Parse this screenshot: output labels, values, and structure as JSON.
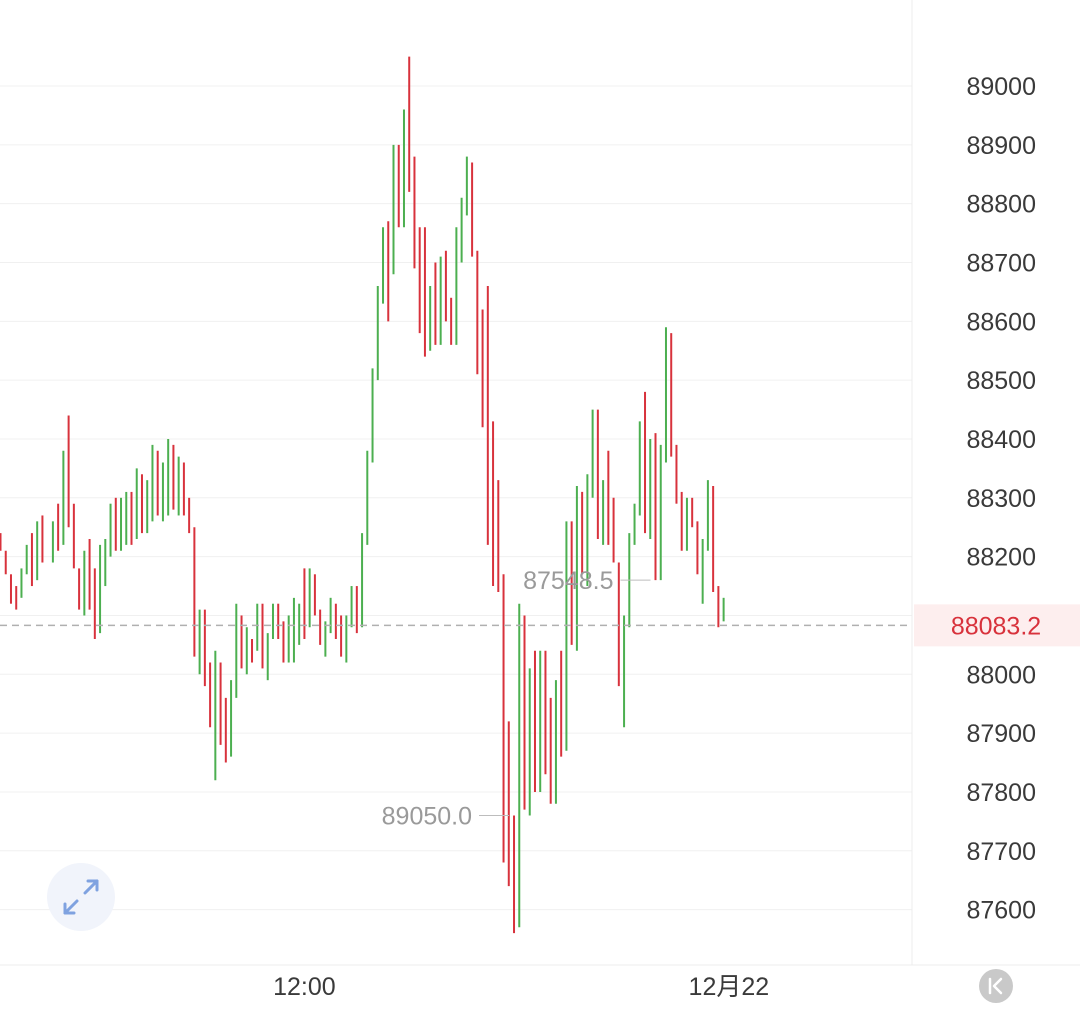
{
  "chart_data": {
    "type": "ohlc",
    "title": "",
    "xlabel": "",
    "ylabel": "",
    "ylim": [
      87490,
      89150
    ],
    "y_ticks": [
      87600,
      87700,
      87800,
      87900,
      88000,
      88100,
      88200,
      88300,
      88400,
      88500,
      88600,
      88700,
      88800,
      88900,
      89000
    ],
    "y_tick_labels": [
      "87600",
      "87700",
      "87800",
      "87900",
      "88000",
      "",
      "88200",
      "88300",
      "88400",
      "88500",
      "88600",
      "88700",
      "88800",
      "88900",
      "89000"
    ],
    "x_tick_labels": [
      {
        "label": "12:00",
        "index": 58
      },
      {
        "label": "12月22",
        "index": 139
      }
    ],
    "current_price": 88083.2,
    "current_price_label": "88083.2",
    "max_label": "89050.0",
    "min_label": "87548.5",
    "max_index": 98,
    "min_index": 125,
    "grid": true,
    "colors": {
      "up": "#4caf50",
      "down": "#d8323c",
      "price_line": "#b0b0b0",
      "price_text": "#d8323c"
    },
    "candles": [
      [
        88240,
        88240,
        88210,
        88210
      ],
      [
        88210,
        88210,
        88170,
        88170
      ],
      [
        88170,
        88170,
        88120,
        88150
      ],
      [
        88150,
        88150,
        88110,
        88130
      ],
      [
        88130,
        88180,
        88130,
        88180
      ],
      [
        88180,
        88220,
        88170,
        88210
      ],
      [
        88210,
        88240,
        88150,
        88160
      ],
      [
        88160,
        88260,
        88160,
        88250
      ],
      [
        88250,
        88270,
        88190,
        88190
      ],
      [
        88190,
        88200,
        88200,
        88200
      ],
      [
        88200,
        88260,
        88190,
        88250
      ],
      [
        88250,
        88290,
        88210,
        88220
      ],
      [
        88220,
        88380,
        88220,
        88380
      ],
      [
        88380,
        88440,
        88250,
        88250
      ],
      [
        88250,
        88290,
        88180,
        88180
      ],
      [
        88180,
        88180,
        88110,
        88130
      ],
      [
        88130,
        88210,
        88100,
        88200
      ],
      [
        88200,
        88230,
        88110,
        88130
      ],
      [
        88130,
        88180,
        88060,
        88080
      ],
      [
        88080,
        88220,
        88070,
        88210
      ],
      [
        88210,
        88230,
        88150,
        88230
      ],
      [
        88230,
        88290,
        88200,
        88280
      ],
      [
        88280,
        88300,
        88210,
        88210
      ],
      [
        88210,
        88300,
        88210,
        88290
      ],
      [
        88290,
        88310,
        88220,
        88300
      ],
      [
        88300,
        88310,
        88220,
        88230
      ],
      [
        88230,
        88350,
        88230,
        88340
      ],
      [
        88340,
        88340,
        88240,
        88250
      ],
      [
        88250,
        88330,
        88240,
        88320
      ],
      [
        88320,
        88390,
        88260,
        88380
      ],
      [
        88380,
        88380,
        88270,
        88280
      ],
      [
        88280,
        88360,
        88260,
        88340
      ],
      [
        88340,
        88400,
        88270,
        88390
      ],
      [
        88390,
        88390,
        88280,
        88290
      ],
      [
        88290,
        88370,
        88270,
        88350
      ],
      [
        88350,
        88360,
        88270,
        88280
      ],
      [
        88280,
        88300,
        88240,
        88240
      ],
      [
        88240,
        88250,
        88030,
        88030
      ],
      [
        88030,
        88110,
        88000,
        88100
      ],
      [
        88100,
        88110,
        87980,
        87990
      ],
      [
        87990,
        88020,
        87910,
        87920
      ],
      [
        87920,
        88040,
        87820,
        88020
      ],
      [
        88020,
        88020,
        87880,
        87900
      ],
      [
        87900,
        87960,
        87850,
        87860
      ],
      [
        87860,
        87990,
        87860,
        87960
      ],
      [
        87960,
        88120,
        87960,
        88100
      ],
      [
        88100,
        88100,
        88010,
        88020
      ],
      [
        88020,
        88080,
        88000,
        88050
      ],
      [
        88050,
        88060,
        88020,
        88040
      ],
      [
        88040,
        88120,
        88040,
        88080
      ],
      [
        88080,
        88120,
        88010,
        88020
      ],
      [
        88020,
        88070,
        87990,
        88070
      ],
      [
        88070,
        88120,
        88060,
        88110
      ],
      [
        88110,
        88120,
        88060,
        88070
      ],
      [
        88070,
        88090,
        88020,
        88040
      ],
      [
        88040,
        88100,
        88020,
        88050
      ],
      [
        88050,
        88130,
        88020,
        88060
      ],
      [
        88060,
        88120,
        88050,
        88110
      ],
      [
        88110,
        88180,
        88060,
        88090
      ],
      [
        88090,
        88180,
        88080,
        88170
      ],
      [
        88170,
        88170,
        88100,
        88100
      ],
      [
        88100,
        88110,
        88050,
        88070
      ],
      [
        88070,
        88090,
        88030,
        88080
      ],
      [
        88080,
        88130,
        88070,
        88110
      ],
      [
        88110,
        88120,
        88060,
        88080
      ],
      [
        88080,
        88100,
        88030,
        88040
      ],
      [
        88040,
        88100,
        88020,
        88090
      ],
      [
        88090,
        88150,
        88080,
        88130
      ],
      [
        88130,
        88150,
        88070,
        88080
      ],
      [
        88080,
        88240,
        88080,
        88230
      ],
      [
        88230,
        88380,
        88220,
        88370
      ],
      [
        88370,
        88520,
        88360,
        88510
      ],
      [
        88510,
        88660,
        88500,
        88650
      ],
      [
        88650,
        88760,
        88630,
        88750
      ],
      [
        88750,
        88770,
        88600,
        88680
      ],
      [
        88680,
        88900,
        88680,
        88890
      ],
      [
        88890,
        88900,
        88760,
        88760
      ],
      [
        88760,
        88960,
        88760,
        88950
      ],
      [
        88950,
        89050,
        88820,
        88880
      ],
      [
        88880,
        88880,
        88690,
        88700
      ],
      [
        88700,
        88760,
        88580,
        88620
      ],
      [
        88620,
        88760,
        88540,
        88560
      ],
      [
        88560,
        88660,
        88550,
        88650
      ],
      [
        88650,
        88700,
        88560,
        88570
      ],
      [
        88570,
        88710,
        88560,
        88700
      ],
      [
        88700,
        88720,
        88600,
        88620
      ],
      [
        88620,
        88640,
        88560,
        88570
      ],
      [
        88570,
        88760,
        88560,
        88750
      ],
      [
        88750,
        88810,
        88700,
        88790
      ],
      [
        88790,
        88880,
        88780,
        88870
      ],
      [
        88870,
        88870,
        88710,
        88720
      ],
      [
        88720,
        88720,
        88510,
        88520
      ],
      [
        88520,
        88620,
        88420,
        88440
      ],
      [
        88440,
        88660,
        88220,
        88230
      ],
      [
        88230,
        88430,
        88150,
        88160
      ],
      [
        88160,
        88330,
        88140,
        88150
      ],
      [
        88150,
        88170,
        87680,
        87690
      ],
      [
        87690,
        87920,
        87640,
        87660
      ],
      [
        87660,
        87760,
        87560,
        87570
      ],
      [
        87570,
        88120,
        87570,
        88100
      ],
      [
        88100,
        88100,
        87770,
        87790
      ],
      [
        87790,
        88010,
        87760,
        88000
      ],
      [
        88000,
        88040,
        87800,
        87820
      ],
      [
        87820,
        88040,
        87800,
        88030
      ],
      [
        88030,
        88040,
        87830,
        87840
      ],
      [
        87840,
        87960,
        87780,
        87790
      ],
      [
        87790,
        87990,
        87780,
        87980
      ],
      [
        87980,
        88040,
        87860,
        87870
      ],
      [
        87870,
        88260,
        87870,
        88250
      ],
      [
        88250,
        88260,
        88050,
        88060
      ],
      [
        88060,
        88320,
        88040,
        88300
      ],
      [
        88300,
        88310,
        88170,
        88170
      ],
      [
        88170,
        88340,
        88150,
        88320
      ],
      [
        88320,
        88450,
        88300,
        88440
      ],
      [
        88440,
        88450,
        88230,
        88240
      ],
      [
        88240,
        88330,
        88220,
        88320
      ],
      [
        88320,
        88380,
        88220,
        88230
      ],
      [
        88230,
        88300,
        88190,
        88190
      ],
      [
        88190,
        88190,
        87980,
        87990
      ],
      [
        87990,
        88100,
        87910,
        88090
      ],
      [
        88090,
        88240,
        88080,
        88230
      ],
      [
        88230,
        88290,
        88220,
        88280
      ],
      [
        88280,
        88430,
        88270,
        88420
      ],
      [
        88420,
        88480,
        88240,
        88250
      ],
      [
        88250,
        88400,
        88230,
        88390
      ],
      [
        88390,
        88410,
        88160,
        88160
      ],
      [
        88160,
        88390,
        88160,
        88370
      ],
      [
        88370,
        88590,
        88360,
        88580
      ],
      [
        88580,
        88580,
        88370,
        88380
      ],
      [
        88380,
        88390,
        88290,
        88300
      ],
      [
        88300,
        88310,
        88210,
        88220
      ],
      [
        88220,
        88300,
        88210,
        88280
      ],
      [
        88280,
        88300,
        88250,
        88250
      ],
      [
        88250,
        88260,
        88170,
        88180
      ],
      [
        88180,
        88230,
        88120,
        88220
      ],
      [
        88220,
        88330,
        88210,
        88320
      ],
      [
        88320,
        88320,
        88140,
        88150
      ],
      [
        88150,
        88150,
        88080,
        88090
      ],
      [
        88090,
        88130,
        88090,
        88120
      ]
    ]
  },
  "controls": {
    "expand_icon": "expand-arrows-icon",
    "scroll_end_icon": "scroll-to-latest-icon"
  }
}
